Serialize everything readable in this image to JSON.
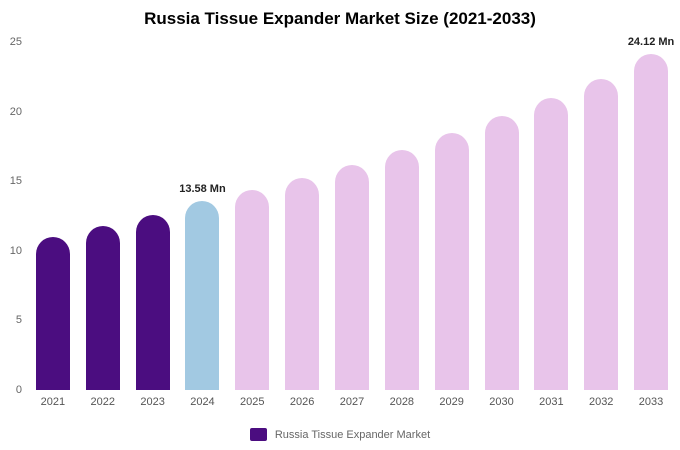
{
  "chart_data": {
    "type": "bar",
    "title": "Russia Tissue Expander Market Size (2021-2033)",
    "categories": [
      "2021",
      "2022",
      "2023",
      "2024",
      "2025",
      "2026",
      "2027",
      "2028",
      "2029",
      "2030",
      "2031",
      "2032",
      "2033"
    ],
    "values": [
      11.0,
      11.8,
      12.6,
      13.58,
      14.35,
      15.25,
      16.2,
      17.25,
      18.45,
      19.65,
      20.95,
      22.35,
      24.12
    ],
    "bar_colors": [
      "#4B0D80",
      "#4B0D80",
      "#4B0D80",
      "#A2C9E2",
      "#E8C4EA",
      "#E8C4EA",
      "#E8C4EA",
      "#E8C4EA",
      "#E8C4EA",
      "#E8C4EA",
      "#E8C4EA",
      "#E8C4EA",
      "#E8C4EA"
    ],
    "annotations": [
      {
        "index": 3,
        "text": "13.58 Mn"
      },
      {
        "index": 12,
        "text": "24.12 Mn"
      }
    ],
    "xlabel": "",
    "ylabel": "",
    "ylim": [
      0,
      25
    ],
    "yticks": [
      0,
      5,
      10,
      15,
      20,
      25
    ],
    "grid": false,
    "legend_position": "bottom",
    "legend": [
      {
        "label": "Russia Tissue Expander Market",
        "color": "#4B0D80"
      }
    ]
  }
}
